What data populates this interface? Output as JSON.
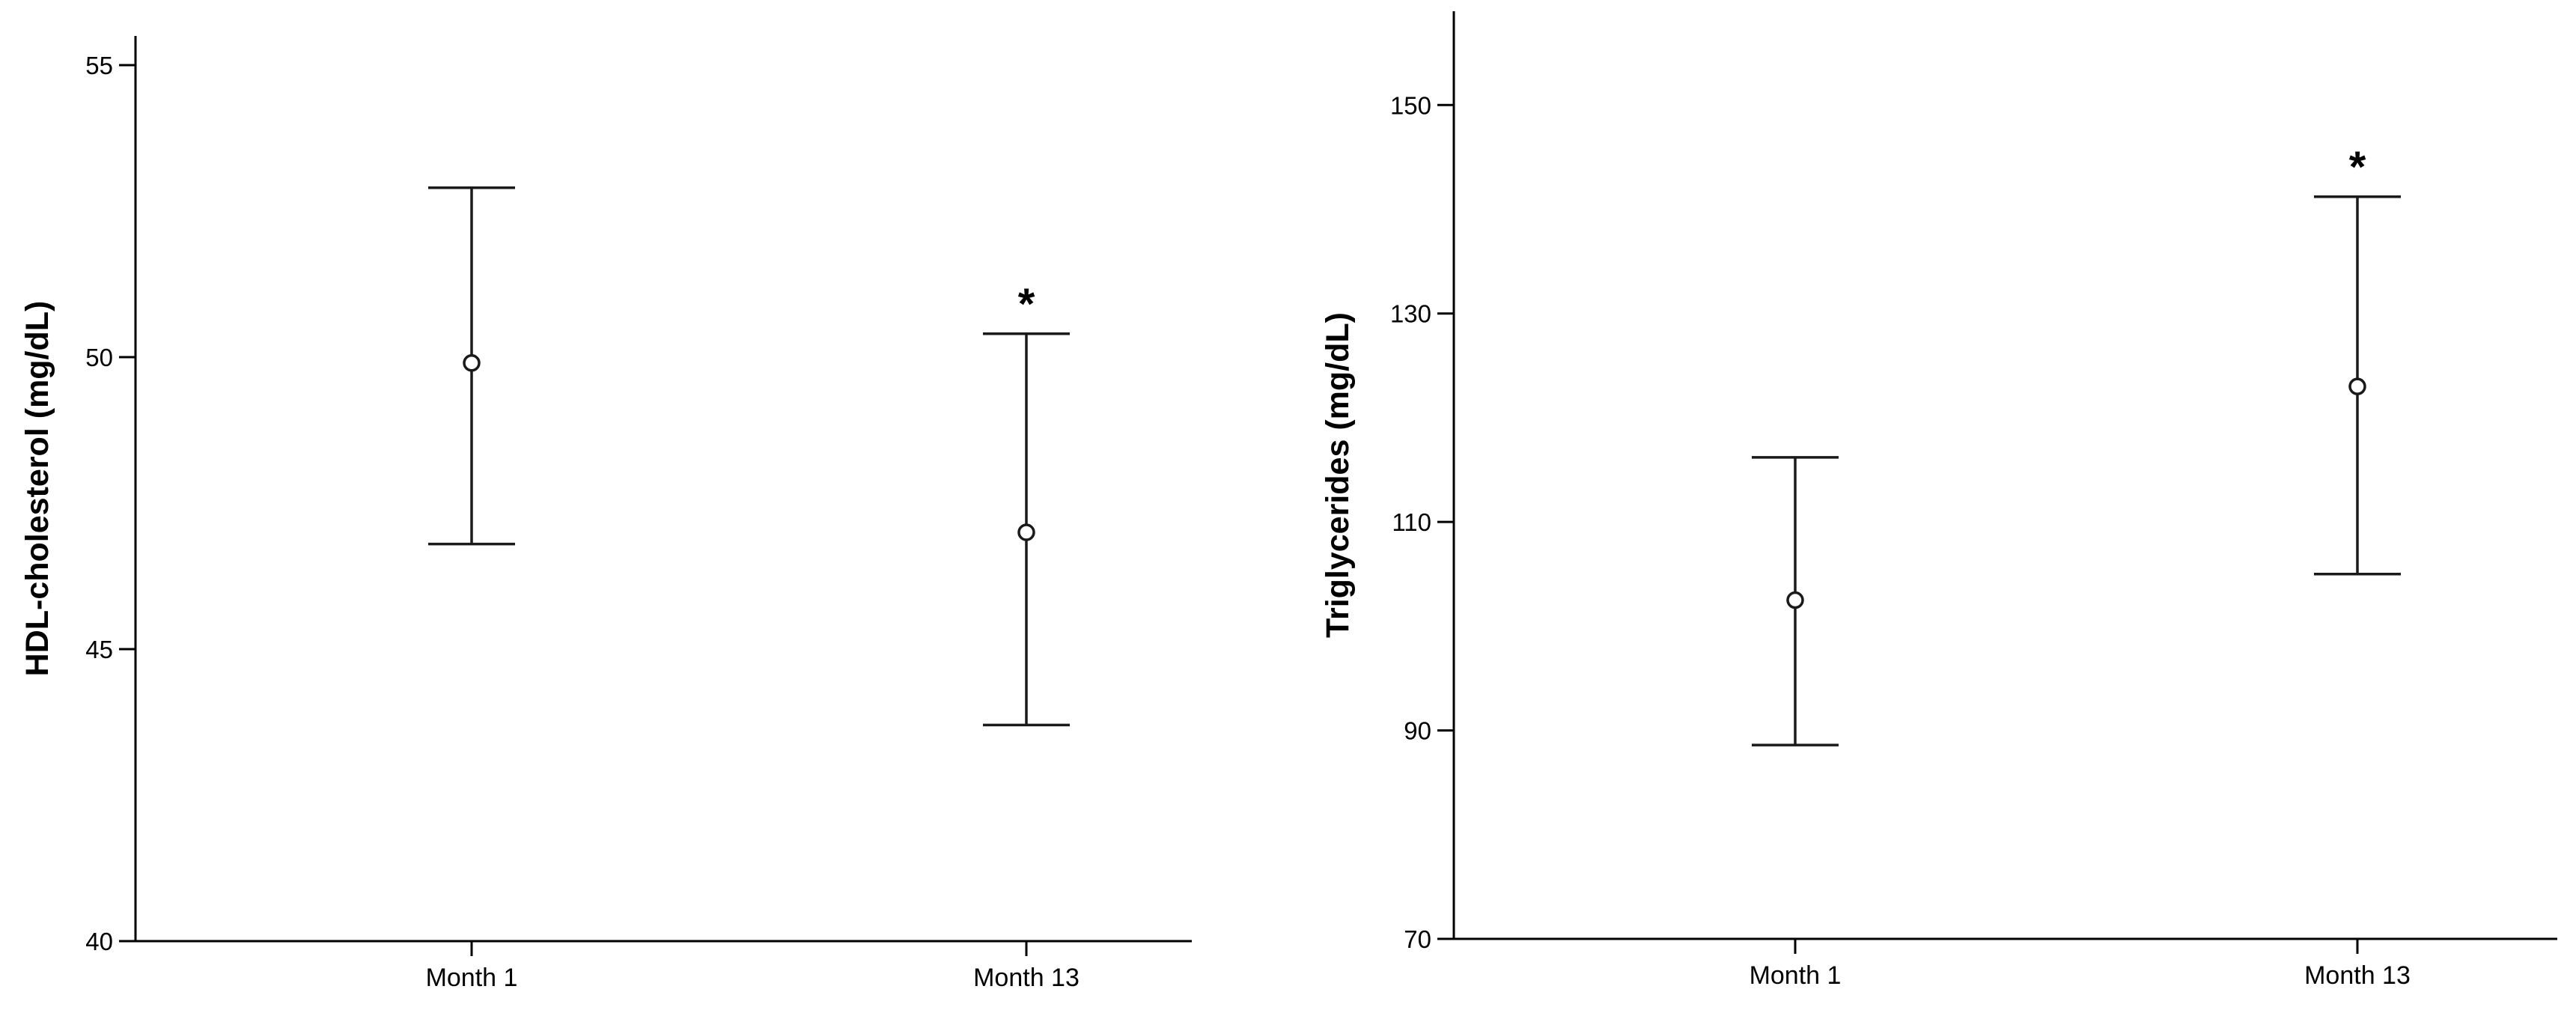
{
  "chart_data": [
    {
      "type": "errorbar",
      "categories": [
        "Month 1",
        "Month 13"
      ],
      "series": [
        {
          "mean": [
            49.9,
            47.0
          ],
          "lower": [
            46.8,
            43.7
          ],
          "upper": [
            52.9,
            50.4
          ]
        }
      ],
      "annotations": [
        "",
        "*"
      ],
      "ylabel": "HDL-cholesterol (mg/dL)",
      "xlabel": "",
      "ylim": [
        40,
        55.5
      ],
      "yticks": [
        40,
        45,
        50,
        55
      ],
      "grid": false,
      "colors": {
        "line": "#1a1a1a",
        "axis": "#000000"
      }
    },
    {
      "type": "errorbar",
      "categories": [
        "Month 1",
        "Month 13"
      ],
      "series": [
        {
          "mean": [
            102.5,
            123.0
          ],
          "lower": [
            88.6,
            105.0
          ],
          "upper": [
            116.2,
            141.2
          ]
        }
      ],
      "annotations": [
        "",
        "*"
      ],
      "ylabel": "Triglycerides (mg/dL)",
      "xlabel": "",
      "ylim": [
        70,
        159
      ],
      "yticks": [
        70,
        90,
        110,
        130,
        150
      ],
      "grid": false,
      "colors": {
        "line": "#1a1a1a",
        "axis": "#000000"
      }
    }
  ]
}
